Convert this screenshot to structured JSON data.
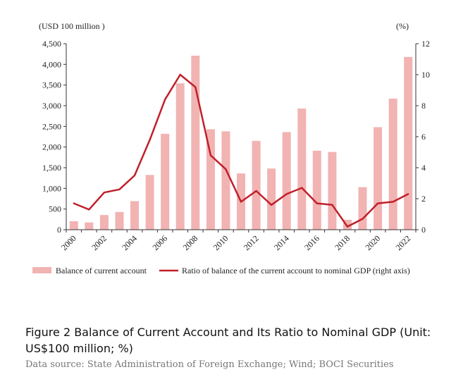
{
  "colors": {
    "bar": "#f2b3b3",
    "line": "#c0202a",
    "axis": "#333333"
  },
  "chart_data": {
    "type": "bar+line",
    "left_axis_unit": "(USD 100 million )",
    "right_axis_unit": "(%)",
    "left_ylim": [
      0,
      4500
    ],
    "left_ticks": [
      0,
      500,
      1000,
      1500,
      2000,
      2500,
      3000,
      3500,
      4000,
      4500
    ],
    "left_tick_labels": [
      "0",
      "500",
      "1,000",
      "1,500",
      "2,000",
      "2,500",
      "3,000",
      "3,500",
      "4,000",
      "4,500"
    ],
    "right_ylim": [
      0,
      12
    ],
    "right_ticks": [
      0,
      2,
      4,
      6,
      8,
      10,
      12
    ],
    "right_tick_labels": [
      "0",
      "2",
      "4",
      "6",
      "8",
      "10",
      "12"
    ],
    "categories": [
      "2000",
      "2001",
      "2002",
      "2003",
      "2004",
      "2005",
      "2006",
      "2007",
      "2008",
      "2009",
      "2010",
      "2011",
      "2012",
      "2013",
      "2014",
      "2015",
      "2016",
      "2017",
      "2018",
      "2019",
      "2020",
      "2021",
      "2022"
    ],
    "x_tick_labels": [
      "2000",
      "",
      "2002",
      "",
      "2004",
      "",
      "2006",
      "",
      "2008",
      "",
      "2010",
      "",
      "2012",
      "",
      "2014",
      "",
      "2016",
      "",
      "2018",
      "",
      "2020",
      "",
      "2022"
    ],
    "series": [
      {
        "name": "Balance of current account",
        "type": "bar",
        "axis": "left",
        "values": [
          205,
          175,
          355,
          430,
          690,
          1325,
          2320,
          3540,
          4210,
          2430,
          2380,
          1360,
          2150,
          1480,
          2360,
          2930,
          1910,
          1880,
          240,
          1030,
          2480,
          3170,
          4180
        ]
      },
      {
        "name": "Ratio of balance of the current account to nominal GDP (right axis)",
        "type": "line",
        "axis": "right",
        "values": [
          1.7,
          1.3,
          2.4,
          2.6,
          3.5,
          5.8,
          8.4,
          10.0,
          9.2,
          4.8,
          3.9,
          1.8,
          2.5,
          1.6,
          2.3,
          2.7,
          1.7,
          1.6,
          0.2,
          0.7,
          1.7,
          1.8,
          2.3
        ]
      }
    ]
  },
  "caption": {
    "title": "Figure 2 Balance of Current Account and Its Ratio to Nominal GDP (Unit: US$100 million; %)",
    "source": "Data source: State Administration of Foreign Exchange; Wind; BOCI Securities"
  }
}
